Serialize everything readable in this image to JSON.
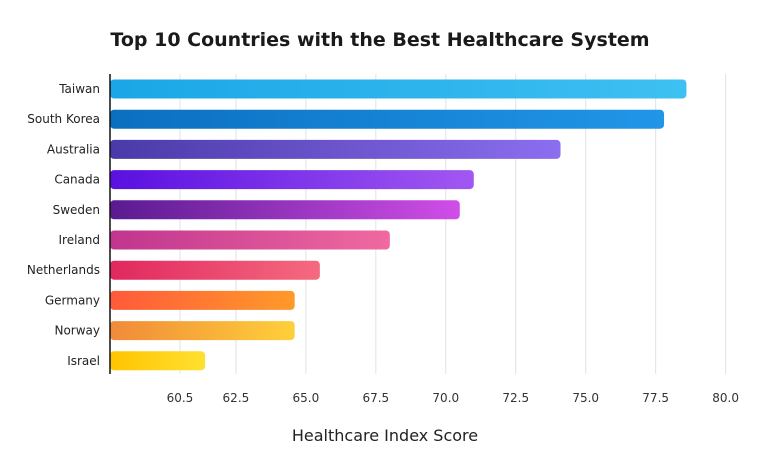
{
  "chart_data": {
    "type": "bar",
    "orientation": "horizontal",
    "title": "Top 10 Countries with the Best Healthcare System",
    "xlabel": "Healthcare Index Score",
    "ylabel": "",
    "categories": [
      "Taiwan",
      "South Korea",
      "Australia",
      "Canada",
      "Sweden",
      "Ireland",
      "Netherlands",
      "Germany",
      "Norway",
      "Israel"
    ],
    "values": [
      78.6,
      77.8,
      74.1,
      71.0,
      70.5,
      68.0,
      65.5,
      64.6,
      64.6,
      61.4
    ],
    "xlim": [
      58.0,
      80.8
    ],
    "xticks": [
      "60.5",
      "62.5",
      "65.0",
      "67.5",
      "70.0",
      "72.5",
      "75.0",
      "77.5",
      "80.0"
    ],
    "xtick_values": [
      60.5,
      62.5,
      65.0,
      67.5,
      70.0,
      72.5,
      75.0,
      77.5,
      80.0
    ],
    "grid": "vertical",
    "legend": "none",
    "bar_gradients": [
      [
        "#1aa6e6",
        "#3ec0f2"
      ],
      [
        "#0b6fc0",
        "#2196e8"
      ],
      [
        "#4a3aa8",
        "#8c6ef0"
      ],
      [
        "#5a10e0",
        "#a158f2"
      ],
      [
        "#5a1a90",
        "#d04ee8"
      ],
      [
        "#c0358e",
        "#f06aa0"
      ],
      [
        "#e0285e",
        "#f56a80"
      ],
      [
        "#ff5a3a",
        "#ff9a2a"
      ],
      [
        "#f08a3a",
        "#ffd03a"
      ],
      [
        "#ffc400",
        "#ffe030"
      ]
    ]
  }
}
